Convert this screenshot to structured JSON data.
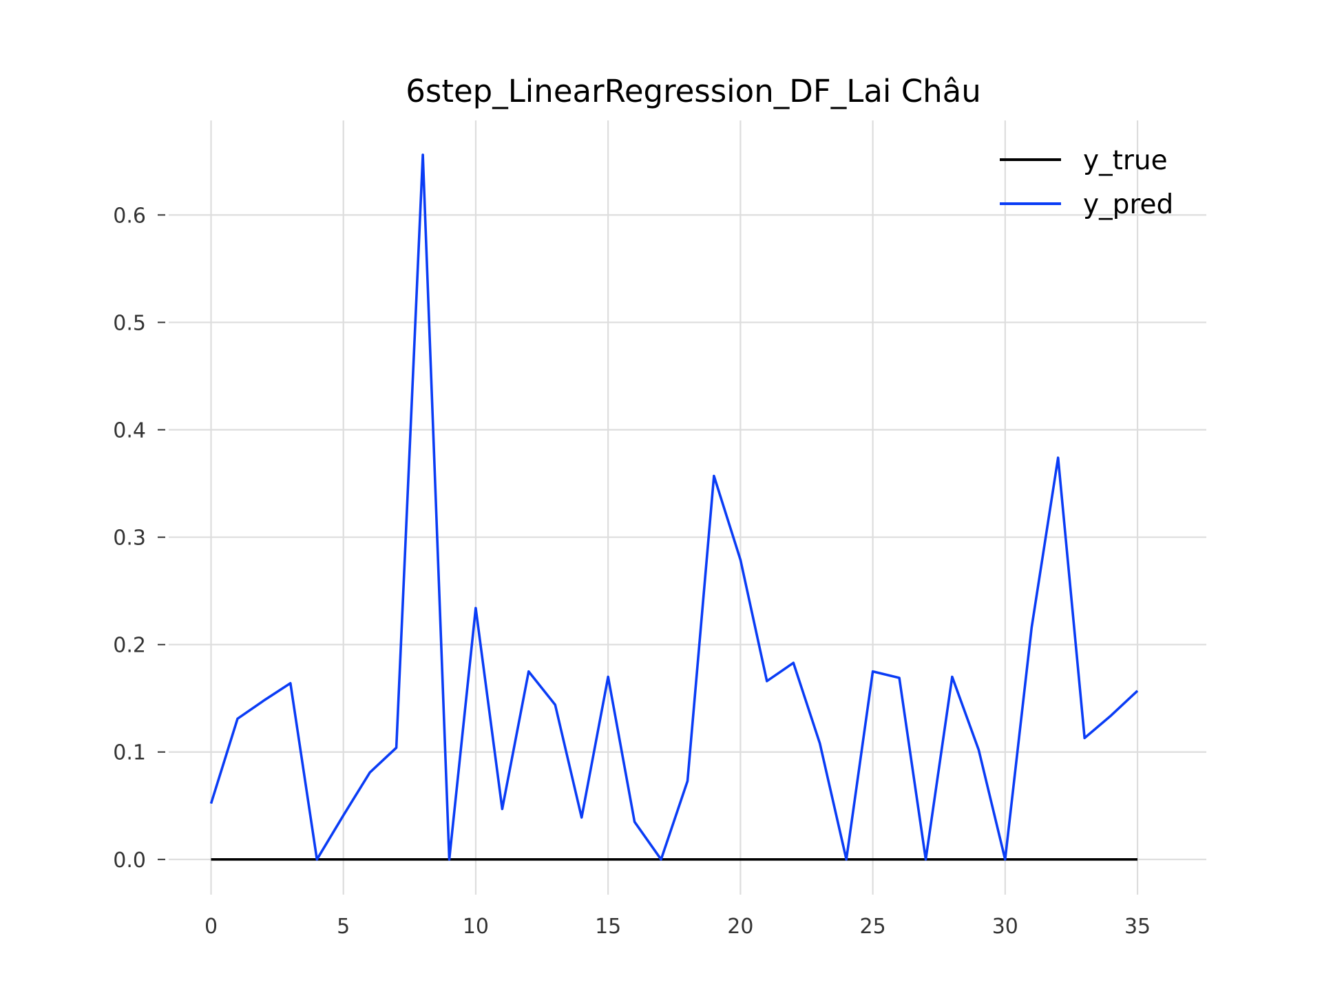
{
  "chart_data": {
    "type": "line",
    "title": "6step_LinearRegression_DF_Lai Châu",
    "xlabel": "",
    "ylabel": "",
    "xlim": [
      -1.6,
      37.6
    ],
    "ylim": [
      -0.0328,
      0.688
    ],
    "xticks": [
      0,
      5,
      10,
      15,
      20,
      25,
      30,
      35
    ],
    "yticks": [
      0.0,
      0.1,
      0.2,
      0.3,
      0.4,
      0.5,
      0.6
    ],
    "ytick_labels": [
      "0.0",
      "0.1",
      "0.2",
      "0.3",
      "0.4",
      "0.5",
      "0.6"
    ],
    "grid": true,
    "legend_position": "top-right",
    "x": [
      0,
      1,
      2,
      3,
      4,
      5,
      6,
      7,
      8,
      9,
      10,
      11,
      12,
      13,
      14,
      15,
      16,
      17,
      18,
      19,
      20,
      21,
      22,
      23,
      24,
      25,
      26,
      27,
      28,
      29,
      30,
      31,
      32,
      33,
      34,
      35
    ],
    "series": [
      {
        "name": "y_true",
        "color": "#000000",
        "values": [
          0,
          0,
          0,
          0,
          0,
          0,
          0,
          0,
          0,
          0,
          0,
          0,
          0,
          0,
          0,
          0,
          0,
          0,
          0,
          0,
          0,
          0,
          0,
          0,
          0,
          0,
          0,
          0,
          0,
          0,
          0,
          0,
          0,
          0,
          0,
          0
        ]
      },
      {
        "name": "y_pred",
        "color": "#0a3cf5",
        "values": [
          0.052,
          0.131,
          0.148,
          0.164,
          0.0,
          0.041,
          0.081,
          0.104,
          0.656,
          0.0,
          0.234,
          0.047,
          0.175,
          0.144,
          0.039,
          0.17,
          0.035,
          0.0,
          0.073,
          0.357,
          0.279,
          0.166,
          0.183,
          0.108,
          0.0,
          0.175,
          0.169,
          0.0,
          0.17,
          0.102,
          0.0,
          0.216,
          0.374,
          0.113,
          0.134,
          0.157
        ]
      }
    ]
  }
}
